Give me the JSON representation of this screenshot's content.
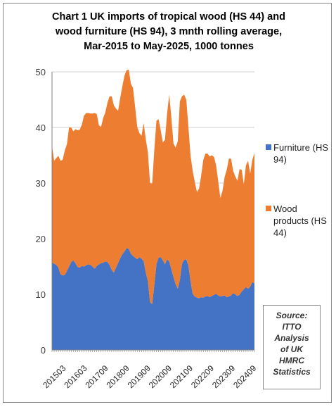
{
  "chart_data": {
    "type": "area",
    "stacked": true,
    "title_lines": [
      "Chart 1 UK imports of tropical wood (HS 44) and",
      "wood furniture (HS 94), 3 mnth rolling average,",
      "Mar-2015 to May-2025, 1000 tonnes"
    ],
    "xlabel": "",
    "ylabel": "",
    "ylim": [
      0,
      50
    ],
    "yticks": [
      0,
      10,
      20,
      30,
      40,
      50
    ],
    "grid": true,
    "legend_position": "right",
    "x_tick_labels": [
      "201503",
      "201603",
      "201709",
      "201809",
      "201909",
      "202009",
      "202109",
      "202209",
      "202309",
      "202409"
    ],
    "series": [
      {
        "name": "Furniture (HS 94)",
        "color": "#4472C4",
        "values": [
          15.7,
          15.5,
          15.3,
          14.8,
          13.6,
          13.4,
          13.5,
          14.2,
          15.0,
          15.8,
          16.1,
          15.6,
          14.9,
          14.8,
          15.1,
          15.0,
          15.2,
          15.4,
          15.3,
          15.0,
          14.6,
          15.1,
          15.4,
          15.6,
          15.7,
          15.9,
          15.8,
          15.3,
          14.4,
          13.9,
          14.8,
          15.6,
          16.5,
          17.2,
          17.7,
          18.3,
          18.2,
          17.3,
          16.9,
          16.6,
          16.3,
          16.7,
          16.4,
          16.0,
          13.9,
          12.4,
          8.6,
          8.2,
          11.7,
          15.4,
          16.6,
          16.7,
          16.1,
          15.4,
          16.3,
          15.9,
          14.5,
          13.1,
          11.8,
          11.0,
          12.6,
          15.5,
          16.2,
          16.3,
          15.2,
          12.4,
          10.1,
          9.6,
          9.4,
          9.3,
          9.5,
          9.4,
          9.6,
          9.7,
          9.5,
          9.7,
          9.9,
          10.1,
          9.8,
          9.6,
          9.7,
          9.8,
          9.5,
          9.6,
          9.8,
          10.2,
          10.0,
          9.7,
          9.9,
          10.5,
          10.9,
          11.3,
          11.0,
          11.4,
          12.2,
          12.0
        ]
      },
      {
        "name": "Wood products (HS 44)",
        "color": "#ED7D31",
        "values": [
          21.0,
          18.5,
          19.2,
          20.1,
          20.4,
          20.8,
          22.4,
          22.8,
          25.0,
          24.2,
          23.2,
          24.1,
          24.6,
          24.8,
          25.4,
          27.1,
          27.4,
          27.2,
          27.2,
          27.5,
          28.0,
          27.3,
          25.0,
          24.5,
          26.0,
          26.8,
          28.6,
          30.3,
          31.2,
          30.1,
          28.6,
          27.4,
          28.8,
          30.2,
          31.6,
          32.0,
          32.2,
          30.6,
          30.2,
          27.1,
          23.8,
          22.3,
          22.1,
          24.8,
          24.0,
          23.1,
          21.4,
          21.7,
          24.3,
          25.8,
          24.9,
          22.8,
          21.2,
          22.4,
          26.2,
          30.0,
          27.3,
          24.0,
          24.6,
          26.5,
          32.1,
          30.1,
          29.7,
          28.7,
          24.9,
          22.6,
          22.1,
          20.6,
          19.0,
          19.7,
          21.9,
          24.8,
          25.7,
          25.6,
          25.3,
          25.3,
          24.8,
          23.1,
          20.5,
          17.7,
          18.9,
          21.3,
          22.9,
          24.8,
          24.6,
          22.0,
          21.2,
          20.7,
          22.6,
          21.9,
          18.9,
          21.9,
          23.0,
          20.3,
          22.0,
          23.4
        ]
      }
    ]
  },
  "source_box": {
    "lines": [
      "Source:",
      "ITTO",
      "Analysis",
      "of UK",
      "HMRC",
      "Statistics"
    ]
  }
}
